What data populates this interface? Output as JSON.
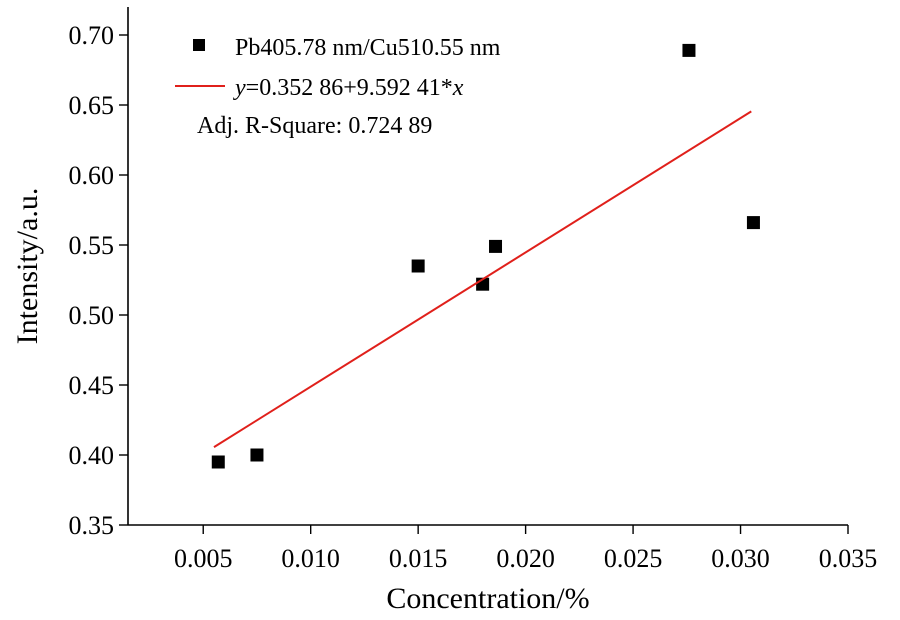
{
  "chart_data": {
    "type": "scatter",
    "xlabel": "Concentration/%",
    "ylabel": "Intensity/a.u.",
    "xlim": [
      0.0015,
      0.035
    ],
    "ylim": [
      0.35,
      0.72
    ],
    "xticks": [
      0.005,
      0.01,
      0.015,
      0.02,
      0.025,
      0.03,
      0.035
    ],
    "xtick_labels": [
      "0.005",
      "0.010",
      "0.015",
      "0.020",
      "0.025",
      "0.030",
      "0.035"
    ],
    "yticks": [
      0.35,
      0.4,
      0.45,
      0.5,
      0.55,
      0.6,
      0.65,
      0.7
    ],
    "ytick_labels": [
      "0.35",
      "0.40",
      "0.45",
      "0.50",
      "0.55",
      "0.60",
      "0.65",
      "0.70"
    ],
    "grid": false,
    "legend_position": "top-left",
    "series": [
      {
        "name": "Pb405.78 nm/Cu510.55 nm",
        "marker": "square",
        "color": "#000000",
        "x": [
          0.0057,
          0.0075,
          0.015,
          0.018,
          0.0186,
          0.0276,
          0.0306
        ],
        "y": [
          0.395,
          0.4,
          0.535,
          0.522,
          0.549,
          0.689,
          0.566
        ]
      }
    ],
    "fit": {
      "color": "#e0201b",
      "intercept": 0.35286,
      "slope": 9.59241,
      "x_range": [
        0.0055,
        0.0305
      ],
      "equation_prefix": "y",
      "equation_body": "=0.352 86+9.592 41*",
      "equation_var": "x",
      "r_square_label": "Adj. R-Square:  0.724 89"
    }
  }
}
